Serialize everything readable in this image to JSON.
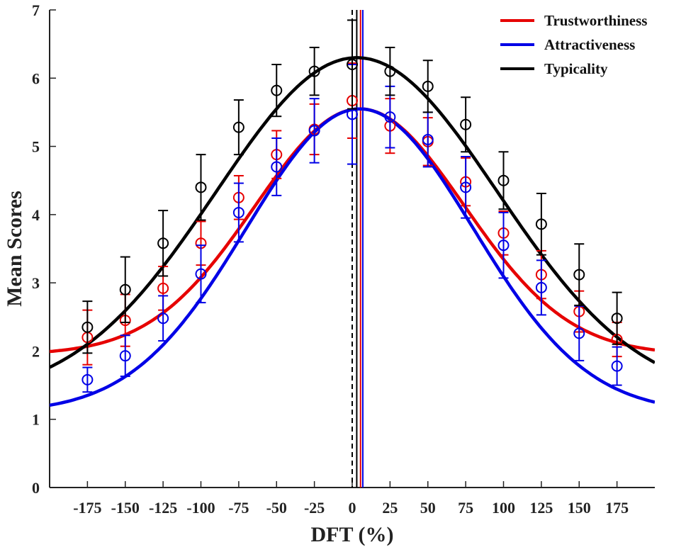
{
  "chart_data": {
    "type": "line",
    "title": "",
    "xlabel": "DFT (%)",
    "ylabel": "Mean Scores",
    "xlim": [
      -200,
      200
    ],
    "ylim": [
      0,
      7
    ],
    "xticks": [
      -175,
      -150,
      -125,
      -100,
      -75,
      -50,
      -25,
      0,
      25,
      50,
      75,
      100,
      125,
      150,
      175
    ],
    "xtick_labels": [
      "-175",
      "-150",
      "-125",
      "-100",
      "-75",
      "-50",
      "-25",
      "0",
      "25",
      "50",
      "75",
      "100",
      "125",
      "150",
      "175"
    ],
    "yticks": [
      0,
      1,
      2,
      3,
      4,
      5,
      6,
      7
    ],
    "ytick_labels": [
      "0",
      "1",
      "2",
      "3",
      "4",
      "5",
      "6",
      "7"
    ],
    "grid": false,
    "legend_position": "top-right",
    "reference_lines": [
      {
        "x": 0,
        "style": "dashed",
        "color": "#000000"
      },
      {
        "x": 3,
        "style": "solid",
        "color": "#000000"
      },
      {
        "x": 5.5,
        "style": "solid",
        "color": "#e60000"
      },
      {
        "x": 7,
        "style": "solid",
        "color": "#0000e6"
      }
    ],
    "x": [
      -175,
      -150,
      -125,
      -100,
      -75,
      -50,
      -25,
      0,
      25,
      50,
      75,
      100,
      125,
      150,
      175
    ],
    "series": [
      {
        "name": "Trustworthiness",
        "color": "#e60000",
        "values": [
          2.2,
          2.45,
          2.92,
          3.58,
          4.25,
          4.88,
          5.25,
          5.67,
          5.3,
          5.07,
          4.48,
          3.73,
          3.12,
          2.58,
          2.17
        ],
        "errors": [
          0.4,
          0.38,
          0.32,
          0.32,
          0.32,
          0.35,
          0.37,
          0.55,
          0.4,
          0.35,
          0.35,
          0.32,
          0.35,
          0.3,
          0.25
        ],
        "fit": {
          "amplitude": 3.6,
          "center": 5,
          "sigma": 69,
          "baseline": 1.95
        }
      },
      {
        "name": "Attractiveness",
        "color": "#0000e6",
        "values": [
          1.58,
          1.93,
          2.48,
          3.13,
          4.03,
          4.7,
          5.23,
          5.47,
          5.43,
          5.1,
          4.4,
          3.55,
          2.93,
          2.26,
          1.78
        ],
        "errors": [
          0.18,
          0.3,
          0.33,
          0.42,
          0.43,
          0.42,
          0.47,
          0.73,
          0.45,
          0.4,
          0.45,
          0.48,
          0.4,
          0.4,
          0.28
        ],
        "fit": {
          "amplitude": 4.45,
          "center": 5,
          "sigma": 75,
          "baseline": 1.1
        }
      },
      {
        "name": "Typicality",
        "color": "#000000",
        "values": [
          2.35,
          2.9,
          3.58,
          4.4,
          5.28,
          5.82,
          6.1,
          6.2,
          6.1,
          5.88,
          5.32,
          4.5,
          3.86,
          3.12,
          2.48
        ],
        "errors": [
          0.38,
          0.48,
          0.48,
          0.48,
          0.4,
          0.38,
          0.35,
          0.65,
          0.35,
          0.38,
          0.4,
          0.42,
          0.45,
          0.45,
          0.38
        ],
        "fit": {
          "amplitude": 5.0,
          "center": 3,
          "sigma": 93,
          "baseline": 1.3
        }
      }
    ]
  }
}
